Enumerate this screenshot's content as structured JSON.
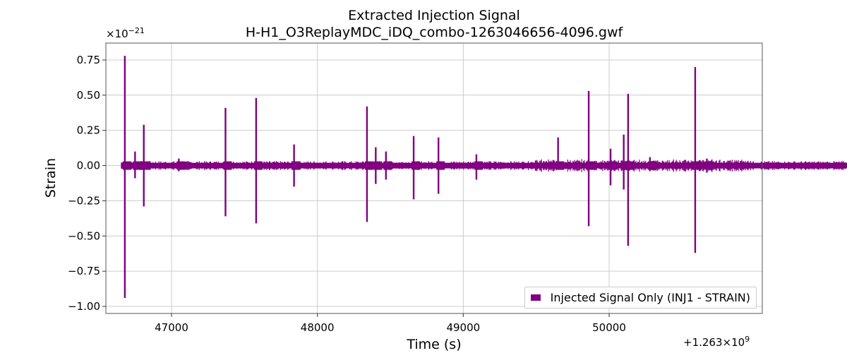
{
  "chart_data": {
    "type": "line",
    "title": "Extracted Injection Signal",
    "subtitle": "H-H1_O3ReplayMDC_iDQ_combo-1263046656-4096.gwf",
    "xlabel": "Time (s)",
    "ylabel": "Strain",
    "x_offset_text": "+1.263×10",
    "x_offset_exp": "9",
    "y_scale_text": "×10",
    "y_scale_exp": "−21",
    "xlim": [
      46550,
      51050
    ],
    "ylim": [
      -1.05,
      0.87
    ],
    "xticks": [
      47000,
      48000,
      49000,
      50000
    ],
    "xtick_labels": [
      "47000",
      "48000",
      "49000",
      "50000"
    ],
    "yticks": [
      0.75,
      0.5,
      0.25,
      0.0,
      -0.25,
      -0.5,
      -0.75,
      -1.0
    ],
    "ytick_labels": [
      "0.75",
      "0.50",
      "0.25",
      "0.00",
      "−0.25",
      "−0.50",
      "−0.75",
      "−1.00"
    ],
    "grid": true,
    "legend_position": "bottom-right",
    "series": [
      {
        "name": "Injected Signal Only (INJ1 - STRAIN)",
        "color": "#800080",
        "x_range": [
          46656,
          51752
        ],
        "baseline_band": [
          -0.01,
          0.01
        ],
        "bursts": [
          {
            "x": 46680,
            "max": 0.78,
            "min": -0.94
          },
          {
            "x": 46750,
            "max": 0.1,
            "min": -0.09
          },
          {
            "x": 46810,
            "max": 0.29,
            "min": -0.29
          },
          {
            "x": 47050,
            "max": 0.05,
            "min": -0.04
          },
          {
            "x": 47370,
            "max": 0.41,
            "min": -0.36
          },
          {
            "x": 47580,
            "max": 0.48,
            "min": -0.41
          },
          {
            "x": 47840,
            "max": 0.15,
            "min": -0.15
          },
          {
            "x": 48340,
            "max": 0.42,
            "min": -0.4
          },
          {
            "x": 48400,
            "max": 0.13,
            "min": -0.13
          },
          {
            "x": 48470,
            "max": 0.1,
            "min": -0.1
          },
          {
            "x": 48660,
            "max": 0.21,
            "min": -0.24
          },
          {
            "x": 48830,
            "max": 0.2,
            "min": -0.2
          },
          {
            "x": 49090,
            "max": 0.08,
            "min": -0.1
          },
          {
            "x": 49650,
            "max": 0.2,
            "min": -0.02
          },
          {
            "x": 49860,
            "max": 0.53,
            "min": -0.43
          },
          {
            "x": 50010,
            "max": 0.12,
            "min": -0.14
          },
          {
            "x": 50100,
            "max": 0.22,
            "min": -0.17
          },
          {
            "x": 50130,
            "max": 0.51,
            "min": -0.57
          },
          {
            "x": 50280,
            "max": 0.06,
            "min": -0.04
          },
          {
            "x": 50590,
            "max": 0.7,
            "min": -0.62
          },
          {
            "x": 50670,
            "max": 0.05,
            "min": -0.05
          }
        ]
      }
    ]
  }
}
